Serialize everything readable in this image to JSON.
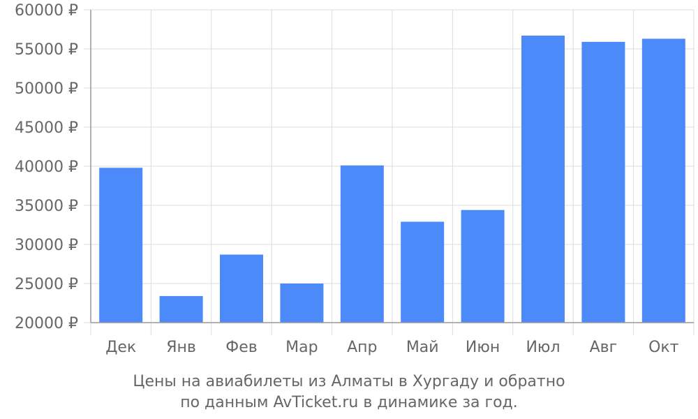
{
  "chart_data": {
    "type": "bar",
    "categories": [
      "Дек",
      "Янв",
      "Фев",
      "Мар",
      "Апр",
      "Май",
      "Июн",
      "Июл",
      "Авг",
      "Окт"
    ],
    "values": [
      39800,
      23400,
      28700,
      25000,
      40100,
      32900,
      34400,
      56700,
      55900,
      56300
    ],
    "ylim": [
      20000,
      60000
    ],
    "yticks": [
      20000,
      25000,
      30000,
      35000,
      40000,
      45000,
      50000,
      55000,
      60000
    ],
    "ytick_suffix": " ₽",
    "grid": true,
    "bar_color": "#4d8af9",
    "grid_color": "#dddddd",
    "axis_color": "#999999",
    "text_color": "#666666"
  },
  "caption": {
    "line1": "Цены на авиабилеты из Алматы в Хургаду и обратно",
    "line2": "по данным AvTicket.ru в динамике за год."
  }
}
